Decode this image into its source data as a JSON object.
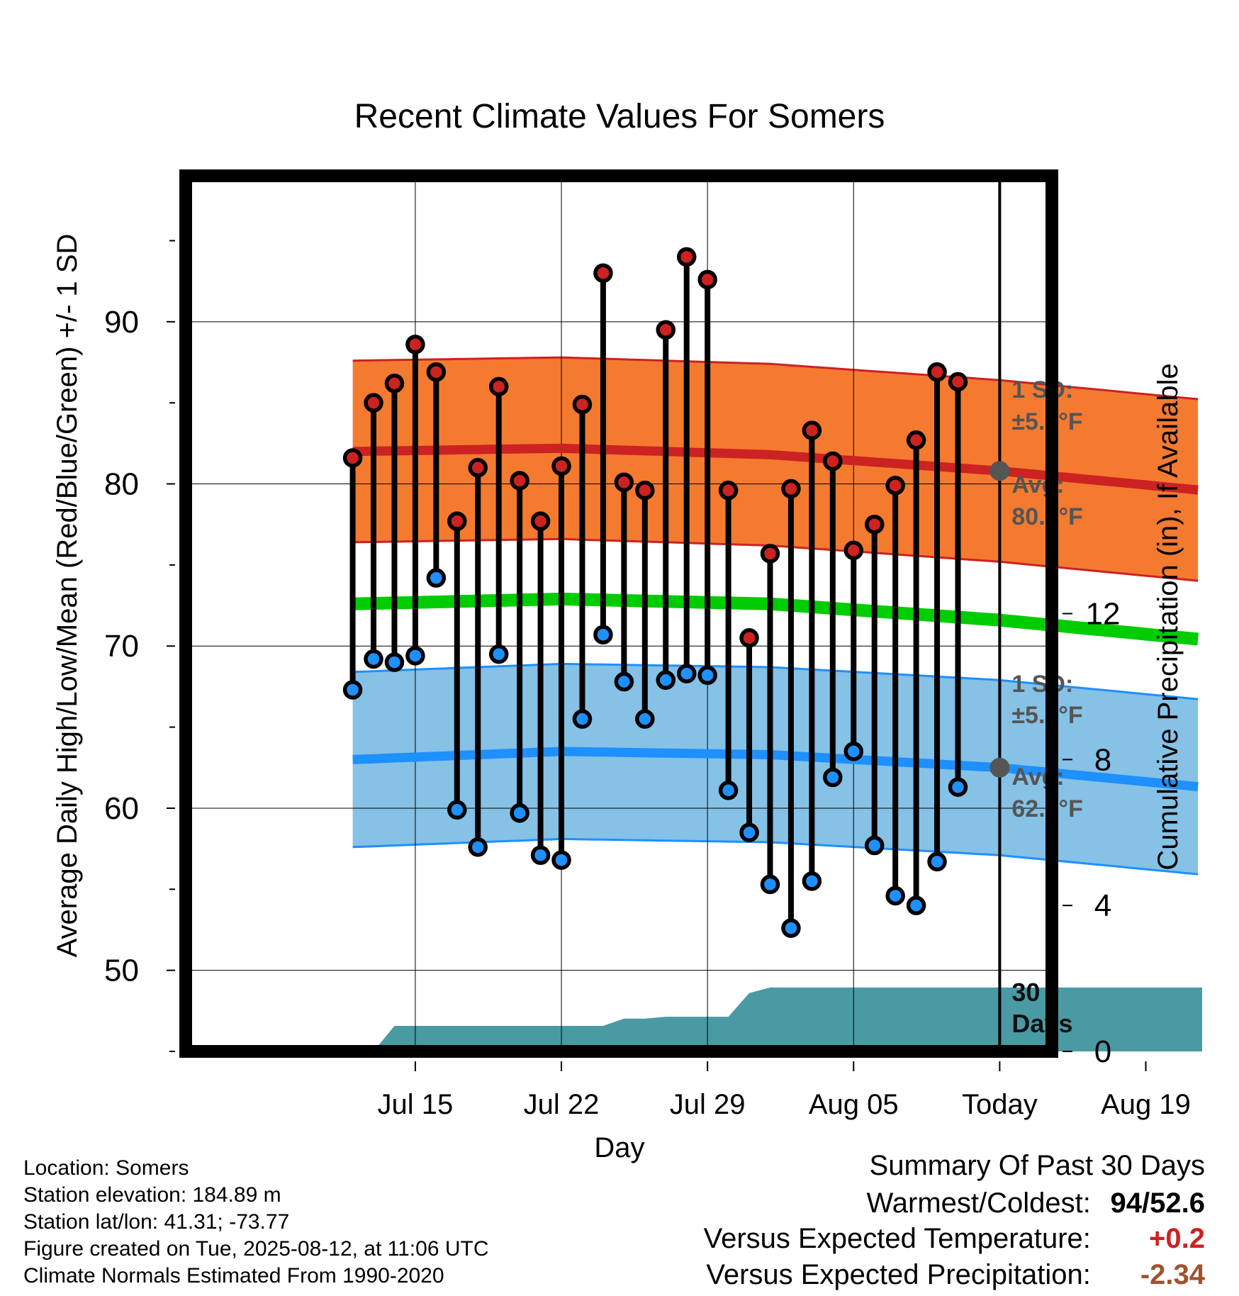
{
  "chart_data": {
    "type": "line",
    "title": "Recent Climate Values For Somers",
    "xlabel": "Day",
    "ylabel": "Average Daily High/Low/Mean (Red/Blue/Green) +/- 1 SD",
    "y2label": "Cumulative Precipitation (in), If Available",
    "ylim": [
      45,
      99
    ],
    "y2lim": [
      0,
      24
    ],
    "xlim": [
      -8,
      33.5
    ],
    "yticks": [
      "50",
      "60",
      "70",
      "80",
      "90"
    ],
    "y2ticks": [
      "0",
      "4",
      "8",
      "12"
    ],
    "xticks": [
      {
        "day": 3,
        "label": "Jul 15"
      },
      {
        "day": 10,
        "label": "Jul 22"
      },
      {
        "day": 17,
        "label": "Jul 29"
      },
      {
        "day": 24,
        "label": "Aug 05"
      },
      {
        "day": 31,
        "label": "Today"
      },
      {
        "day": 38,
        "label": "Aug 19"
      }
    ],
    "x_axis_origin_note": "",
    "series": [
      {
        "name": "Daily High",
        "color": "#cc2222",
        "x": [
          0,
          1,
          2,
          3,
          4,
          5,
          6,
          7,
          8,
          9,
          10,
          11,
          12,
          13,
          14,
          15,
          16,
          17,
          18,
          19,
          20,
          21,
          22,
          23,
          24,
          25,
          26,
          27,
          28,
          29,
          30
        ],
        "values": [
          81.6,
          85.0,
          86.2,
          88.6,
          86.9,
          77.7,
          81.0,
          86.0,
          80.2,
          77.7,
          81.1,
          84.9,
          93.0,
          80.1,
          79.6,
          89.5,
          94.0,
          92.6,
          79.6,
          70.5,
          75.7,
          79.7,
          83.3,
          81.4,
          75.9,
          77.5,
          79.9,
          82.7,
          86.9,
          86.3,
          null
        ]
      },
      {
        "name": "Daily Low",
        "color": "#1e90ff",
        "x": [
          0,
          1,
          2,
          3,
          4,
          5,
          6,
          7,
          8,
          9,
          10,
          11,
          12,
          13,
          14,
          15,
          16,
          17,
          18,
          19,
          20,
          21,
          22,
          23,
          24,
          25,
          26,
          27,
          28,
          29,
          30
        ],
        "values": [
          67.3,
          69.2,
          69.0,
          69.4,
          74.2,
          59.9,
          57.6,
          69.5,
          59.7,
          57.1,
          56.8,
          65.5,
          70.7,
          67.8,
          65.5,
          67.9,
          68.3,
          68.2,
          61.1,
          58.5,
          55.3,
          52.6,
          55.5,
          61.9,
          63.5,
          57.7,
          54.6,
          54.0,
          56.7,
          61.3,
          null
        ]
      }
    ],
    "normals": {
      "x": [
        0,
        10,
        20,
        31,
        40.7
      ],
      "high_avg": [
        82.0,
        82.2,
        81.8,
        80.8,
        79.6
      ],
      "mean_avg": [
        72.6,
        72.9,
        72.6,
        71.6,
        70.4
      ],
      "low_avg": [
        63.0,
        63.5,
        63.3,
        62.5,
        61.3
      ],
      "high_sd": 5.6,
      "low_sd": 5.4
    },
    "precip": {
      "x": [
        1,
        2,
        3,
        4,
        5,
        6,
        7,
        8,
        9,
        10,
        11,
        12,
        13,
        14,
        15,
        16,
        17,
        18,
        19,
        20,
        40.7
      ],
      "values": [
        0,
        0.7,
        0.7,
        0.7,
        0.7,
        0.7,
        0.7,
        0.7,
        0.7,
        0.7,
        0.7,
        0.7,
        0.9,
        0.9,
        0.95,
        0.95,
        0.95,
        0.95,
        1.6,
        1.75,
        1.75
      ]
    },
    "annotations": {
      "high_sd_line1": "1 SD:",
      "high_sd_line2": "±5.6°F",
      "high_avg_line1": "Avg:",
      "high_avg_line2": "80.8°F",
      "low_sd_line1": "1 SD:",
      "low_sd_line2": "±5.4°F",
      "low_avg_line1": "Avg:",
      "low_avg_line2": "62.5°F",
      "days_line1": "30",
      "days_line2": "Days"
    },
    "colors": {
      "high_band": "#f47a30",
      "high_line": "#cc2222",
      "low_band": "#86c1e6",
      "low_line": "#1e90ff",
      "mean_line": "#00cc00",
      "precip": "#4a9aa4",
      "marker_today": "#555555"
    },
    "grid": true
  },
  "info": {
    "location": "Location: Somers",
    "elevation": "Station elevation: 184.89 m",
    "latlon": "Station lat/lon: 41.31; -73.77",
    "created": "Figure created on Tue, 2025-08-12, at 11:06 UTC",
    "normals": "Climate Normals Estimated From 1990-2020"
  },
  "summary": {
    "title": "Summary Of Past 30 Days",
    "warmest_label": "Warmest/Coldest:",
    "warmest_value": "94/52.6",
    "temp_label": "Versus Expected Temperature:",
    "temp_value": "+0.2",
    "temp_color": "#cc2222",
    "precip_label": "Versus Expected Precipitation:",
    "precip_value": "-2.34",
    "precip_color": "#a0522d"
  }
}
